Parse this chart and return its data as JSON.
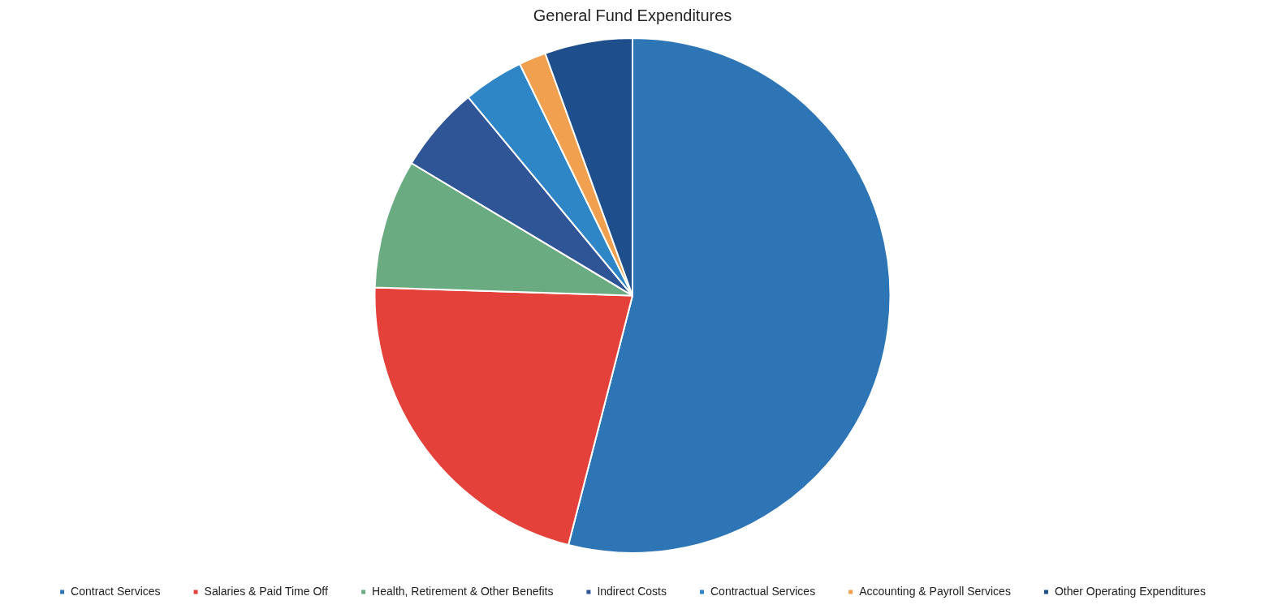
{
  "chart_data": {
    "type": "pie",
    "title": "General Fund Expenditures",
    "categories": [
      "Contract Services",
      "Salaries & Paid Time Off",
      "Health, Retirement & Other Benefits",
      "Indirect Costs",
      "Contractual Services",
      "Accounting & Payroll Services",
      "Other Operating Expenditures"
    ],
    "values": [
      54,
      21.5,
      8.1,
      5.4,
      3.8,
      1.7,
      5.5
    ],
    "colors": [
      "#2e75b6",
      "#e3413a",
      "#6aab82",
      "#2f5597",
      "#2f86c6",
      "#f0a04e",
      "#1f4e8c"
    ],
    "legend": "bottom"
  }
}
